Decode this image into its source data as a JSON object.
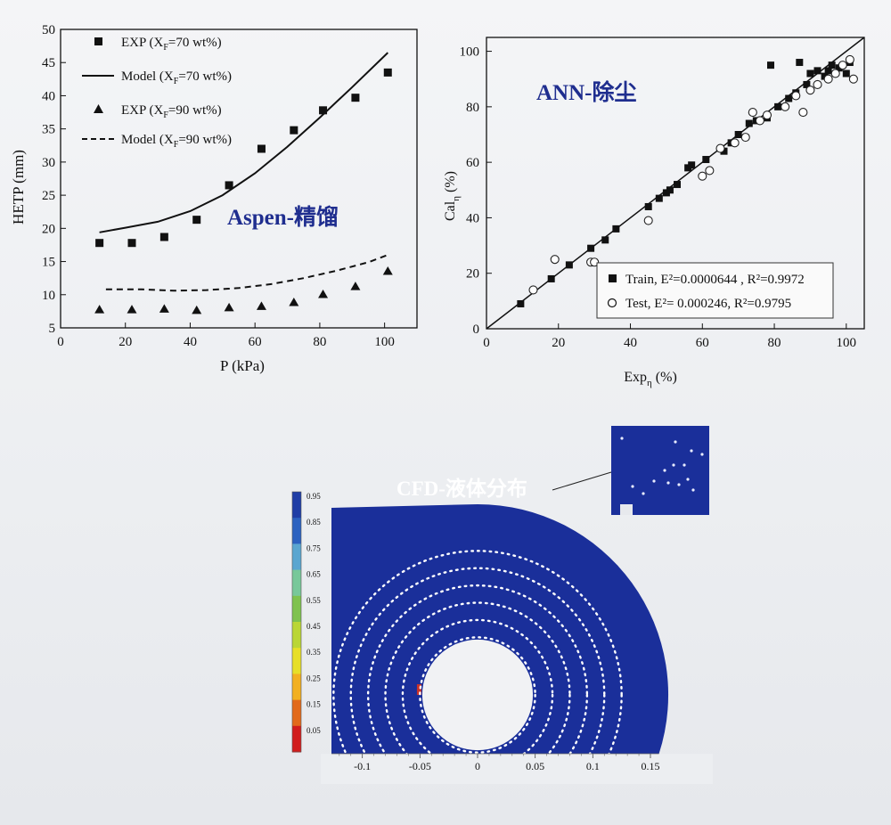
{
  "chart_data": [
    {
      "type": "scatter",
      "id": "hetp",
      "title": "",
      "annotation": "Aspen-精馏",
      "xlabel": "P (kPa)",
      "ylabel": "HETP (mm)",
      "xlim": [
        0,
        110
      ],
      "ylim": [
        5,
        50
      ],
      "xticks": [
        0,
        20,
        40,
        60,
        80,
        100
      ],
      "yticks": [
        5,
        10,
        15,
        20,
        25,
        30,
        35,
        40,
        45,
        50
      ],
      "series": [
        {
          "name": "EXP (X_F=70 wt%)",
          "legend_main": "EXP (X",
          "legend_sub": "F",
          "legend_tail": "=70 wt%)",
          "kind": "square",
          "x": [
            12,
            22,
            32,
            42,
            52,
            62,
            72,
            81,
            91,
            101
          ],
          "y": [
            17.8,
            17.8,
            18.7,
            21.3,
            26.5,
            32.0,
            34.8,
            37.8,
            39.7,
            43.5
          ]
        },
        {
          "name": "Model (X_F=70 wt%)",
          "legend_main": "Model (X",
          "legend_sub": "F",
          "legend_tail": "=70 wt%)",
          "kind": "solid",
          "x": [
            12,
            20,
            30,
            40,
            50,
            60,
            70,
            80,
            90,
            101
          ],
          "y": [
            19.4,
            20.1,
            21.0,
            22.6,
            25.0,
            28.3,
            32.3,
            36.7,
            41.3,
            46.5
          ]
        },
        {
          "name": "EXP (X_F=90 wt%)",
          "legend_main": "EXP (X",
          "legend_sub": "F",
          "legend_tail": "=90 wt%)",
          "kind": "triangle",
          "x": [
            12,
            22,
            32,
            42,
            52,
            62,
            72,
            81,
            91,
            101
          ],
          "y": [
            7.8,
            7.8,
            7.9,
            7.7,
            8.1,
            8.3,
            8.9,
            10.1,
            11.3,
            13.6
          ]
        },
        {
          "name": "Model (X_F=90 wt%)",
          "legend_main": "Model (X",
          "legend_sub": "F",
          "legend_tail": "=90 wt%)",
          "kind": "dashed",
          "x": [
            14,
            25,
            35,
            45,
            55,
            65,
            75,
            85,
            95,
            101
          ],
          "y": [
            10.8,
            10.8,
            10.6,
            10.7,
            11.0,
            11.6,
            12.5,
            13.6,
            14.9,
            16.0
          ]
        }
      ]
    },
    {
      "type": "scatter",
      "id": "ann",
      "annotation": "ANN-除尘",
      "xlabel_main": "Exp",
      "xlabel_sub": "η",
      "xlabel_tail": " (%)",
      "ylabel_main": "Cal",
      "ylabel_sub": "η",
      "ylabel_tail": " (%)",
      "xlim": [
        0,
        105
      ],
      "ylim": [
        0,
        105
      ],
      "xticks": [
        0,
        20,
        40,
        60,
        80,
        100
      ],
      "yticks": [
        0,
        20,
        40,
        60,
        80,
        100
      ],
      "diagonal": [
        0,
        105
      ],
      "legend": [
        {
          "marker": "filled-square",
          "label": "Train, E²=0.0000644 , R²=0.9972"
        },
        {
          "marker": "open-circle",
          "label": "Test,  E²= 0.000246, R²=0.9795"
        }
      ],
      "series": [
        {
          "name": "Train",
          "kind": "filled-square",
          "x": [
            9.5,
            18,
            23,
            29,
            33,
            36,
            45,
            48,
            50,
            51,
            53,
            56,
            57,
            61,
            66,
            68,
            70,
            73,
            75,
            78,
            79,
            81,
            84,
            86,
            87,
            89,
            90,
            92,
            94,
            95,
            96,
            98,
            100,
            101
          ],
          "y": [
            9,
            18,
            23,
            29,
            32,
            36,
            44,
            47,
            49,
            50,
            52,
            58,
            59,
            61,
            64,
            67,
            70,
            74,
            75,
            76,
            95,
            80,
            83,
            85,
            96,
            88,
            92,
            93,
            91,
            93,
            95,
            94,
            92,
            96
          ]
        },
        {
          "name": "Test",
          "kind": "open-circle",
          "x": [
            13,
            19,
            29,
            30,
            45,
            60,
            62,
            65,
            69,
            72,
            74,
            76,
            78,
            83,
            86,
            88,
            90,
            92,
            95,
            97,
            99,
            101,
            102
          ],
          "y": [
            14,
            25,
            24,
            24,
            39,
            55,
            57,
            65,
            67,
            69,
            78,
            75,
            77,
            80,
            84,
            78,
            86,
            88,
            90,
            92,
            95,
            97,
            90
          ]
        }
      ]
    },
    {
      "type": "heatmap",
      "id": "cfd",
      "annotation": "CFD-液体分布",
      "colorbar_ticks": [
        "0.95",
        "0.85",
        "0.75",
        "0.65",
        "0.55",
        "0.45",
        "0.35",
        "0.25",
        "0.15",
        "0.05"
      ],
      "colorbar_colors": [
        "#1f3da6",
        "#2c62c0",
        "#5aa6d0",
        "#78c89a",
        "#7fc24f",
        "#bad636",
        "#e7df28",
        "#f2b021",
        "#e26a1b",
        "#d11d1d"
      ],
      "xticks": [
        "-0.1",
        "-0.05",
        "0",
        "0.05",
        "0.1",
        "0.15"
      ],
      "x_values": [
        -0.1,
        -0.05,
        0,
        0.05,
        0.1,
        0.15
      ],
      "field_color": "#1a2f9a",
      "ring_radii": [
        0.05,
        0.065,
        0.08,
        0.095,
        0.11,
        0.125
      ]
    }
  ],
  "colors": {
    "ink": "#111111",
    "label_blue": "#1f2e8f",
    "field": "#1a2f9a"
  }
}
